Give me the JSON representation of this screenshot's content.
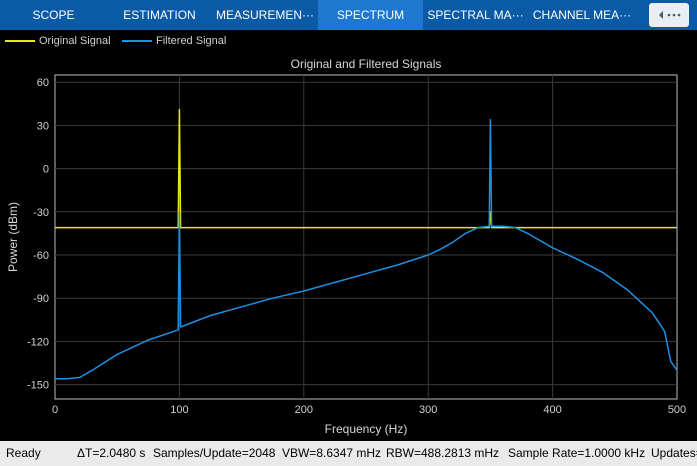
{
  "tabs": [
    {
      "label": "SCOPE",
      "active": false
    },
    {
      "label": "ESTIMATION",
      "active": false
    },
    {
      "label": "MEASUREMENTS",
      "display": "MEASUREMEN···",
      "active": false
    },
    {
      "label": "SPECTRUM",
      "active": true
    },
    {
      "label": "SPECTRAL MASK",
      "display": "SPECTRAL MA···",
      "active": false
    },
    {
      "label": "CHANNEL MEASUREMENTS",
      "display": "CHANNEL MEA···",
      "active": false
    }
  ],
  "collapse_icon": "chevron-up-icon",
  "legend": [
    {
      "name": "Original Signal",
      "color": "#e8e813"
    },
    {
      "name": "Filtered Signal",
      "color": "#1f8fe0"
    }
  ],
  "status": {
    "state": "Ready",
    "delta_t": "ΔT=2.0480 s",
    "samples_per_update": "Samples/Update=2048",
    "vbw": "VBW=8.6347 mHz",
    "rbw": "RBW=488.2813 mHz",
    "sample_rate": "Sample Rate=1.0000 kHz",
    "updates": "Updates="
  },
  "chart_data": {
    "type": "line",
    "title": "Original and Filtered Signals",
    "xlabel": "Frequency (Hz)",
    "ylabel": "Power (dBm)",
    "xlim": [
      0,
      500
    ],
    "ylim": [
      -160,
      65
    ],
    "xticks": [
      0,
      100,
      200,
      300,
      400,
      500
    ],
    "yticks": [
      -150,
      -120,
      -90,
      -60,
      -30,
      0,
      30,
      60
    ],
    "grid": true,
    "series": [
      {
        "name": "Original Signal",
        "color": "#e8e813",
        "x": [
          0,
          50,
          99,
          100,
          101,
          150,
          200,
          250,
          300,
          349,
          350,
          351,
          400,
          450,
          500
        ],
        "values": [
          -41,
          -41,
          -41,
          41,
          -41,
          -41,
          -41,
          -41,
          -41,
          -41,
          -30,
          -41,
          -41,
          -41,
          -41
        ]
      },
      {
        "name": "Filtered Signal",
        "color": "#1f8fe0",
        "x": [
          0,
          10,
          20,
          30,
          50,
          75,
          99,
          100,
          101,
          125,
          150,
          175,
          200,
          225,
          250,
          275,
          300,
          310,
          320,
          330,
          340,
          349,
          350,
          351,
          360,
          370,
          380,
          400,
          420,
          440,
          460,
          480,
          490,
          495,
          500
        ],
        "values": [
          -146,
          -146,
          -145,
          -140,
          -129,
          -119,
          -112,
          -30,
          -110,
          -102,
          -96,
          -90,
          -85,
          -79,
          -73,
          -67,
          -60,
          -56,
          -51,
          -45,
          -41,
          -40,
          34,
          -40,
          -40,
          -41,
          -45,
          -55,
          -63,
          -72,
          -84,
          -100,
          -113,
          -134,
          -140
        ]
      }
    ]
  }
}
